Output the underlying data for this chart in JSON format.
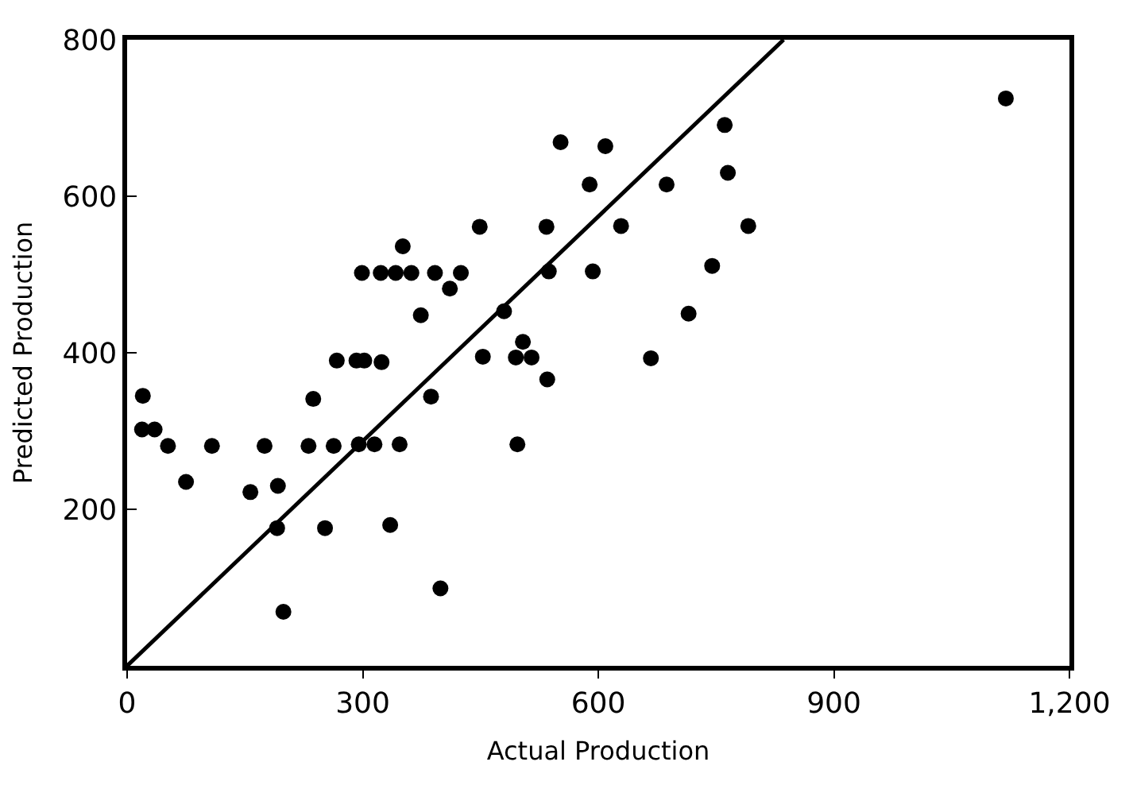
{
  "chart_data": {
    "type": "scatter",
    "xlabel": "Actual Production",
    "ylabel": "Predicted Production",
    "xlim": [
      0,
      1200
    ],
    "ylim": [
      0,
      800
    ],
    "xticks": [
      0,
      300,
      600,
      900,
      {
        "value": 1200,
        "label": "1,200"
      }
    ],
    "yticks": [
      200,
      400,
      600,
      800
    ],
    "marker": "circle",
    "series": [
      {
        "color": "#000000",
        "x": [
          20,
          19,
          35,
          52,
          75,
          108,
          157,
          175,
          192,
          191,
          199,
          237,
          231,
          252,
          263,
          267,
          292,
          302,
          324,
          299,
          323,
          342,
          362,
          351,
          295,
          315,
          347,
          335,
          374,
          392,
          387,
          399,
          411,
          425,
          449,
          453,
          480,
          497,
          495,
          515,
          504,
          535,
          537,
          534,
          552,
          589,
          593,
          609,
          629,
          687,
          761,
          765,
          791,
          745,
          715,
          667,
          1119
        ],
        "values": [
          345,
          302,
          302,
          281,
          235,
          281,
          222,
          281,
          230,
          176,
          69,
          341,
          281,
          176,
          281,
          390,
          390,
          390,
          388,
          502,
          502,
          502,
          502,
          536,
          283,
          283,
          283,
          180,
          448,
          502,
          344,
          99,
          482,
          502,
          561,
          395,
          453,
          283,
          394,
          394,
          414,
          366,
          504,
          561,
          669,
          615,
          504,
          664,
          562,
          615,
          691,
          630,
          562,
          511,
          450,
          393,
          725
        ]
      },
      {
        "type": "line",
        "color": "#000000",
        "marker": "none",
        "line_style": "solid",
        "x": [
          0,
          836
        ],
        "values": [
          0,
          800
        ]
      }
    ]
  }
}
